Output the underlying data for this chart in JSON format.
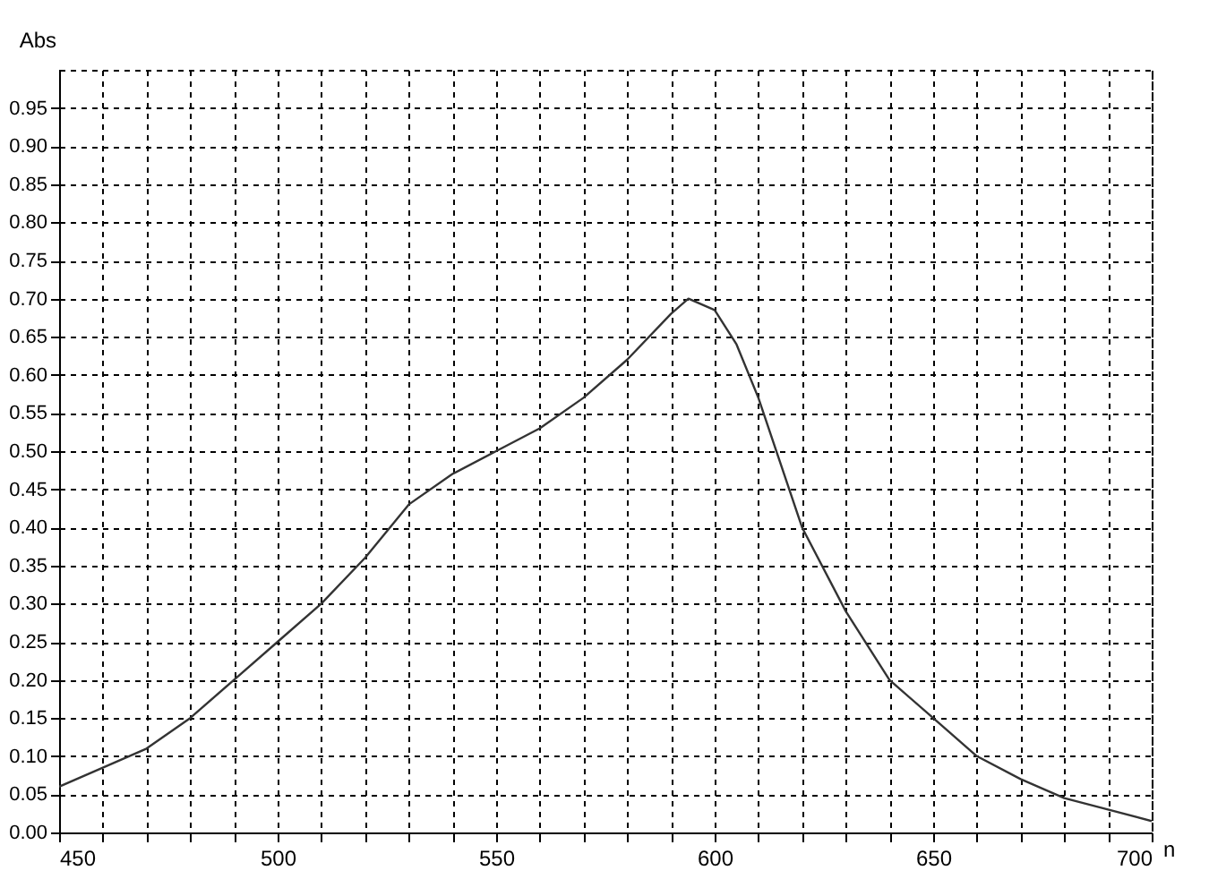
{
  "chart_data": {
    "type": "line",
    "xlabel": "n",
    "ylabel": "Abs",
    "x": [
      450,
      460,
      470,
      480,
      490,
      500,
      510,
      520,
      530,
      540,
      550,
      560,
      570,
      580,
      590,
      594,
      600,
      605,
      610,
      620,
      630,
      640,
      650,
      660,
      670,
      680,
      690,
      700
    ],
    "series": [
      {
        "color": "#333333",
        "values": [
          0.06,
          0.085,
          0.11,
          0.15,
          0.2,
          0.25,
          0.3,
          0.36,
          0.43,
          0.47,
          0.5,
          0.53,
          0.57,
          0.62,
          0.68,
          0.7,
          0.685,
          0.64,
          0.57,
          0.4,
          0.29,
          0.2,
          0.15,
          0.1,
          0.07,
          0.045,
          0.03,
          0.015
        ]
      }
    ],
    "xlim": [
      450,
      700
    ],
    "xticks": [
      450,
      500,
      550,
      600,
      650,
      700
    ],
    "ylim": [
      0,
      1.0
    ],
    "yticks": [
      {
        "value": 0,
        "label": "0.00"
      },
      {
        "value": 0.05,
        "label": "0.05"
      },
      {
        "value": 0.1,
        "label": "0.10"
      },
      {
        "value": 0.15,
        "label": "0.15"
      },
      {
        "value": 0.2,
        "label": "0.20"
      },
      {
        "value": 0.25,
        "label": "0.25"
      },
      {
        "value": 0.3,
        "label": "0.30"
      },
      {
        "value": 0.35,
        "label": "0.35"
      },
      {
        "value": 0.4,
        "label": "0.40"
      },
      {
        "value": 0.45,
        "label": "0.45"
      },
      {
        "value": 0.5,
        "label": "0.50"
      },
      {
        "value": 0.55,
        "label": "0.55"
      },
      {
        "value": 0.6,
        "label": "0.60"
      },
      {
        "value": 0.65,
        "label": "0.65"
      },
      {
        "value": 0.7,
        "label": "0.70"
      },
      {
        "value": 0.75,
        "label": "0.75"
      },
      {
        "value": 0.8,
        "label": "0.80"
      },
      {
        "value": 0.85,
        "label": "0.85"
      },
      {
        "value": 0.9,
        "label": "0.90"
      },
      {
        "value": 0.95,
        "label": "0.95"
      }
    ],
    "grid": true,
    "line_style": "solid",
    "marker": "none"
  }
}
